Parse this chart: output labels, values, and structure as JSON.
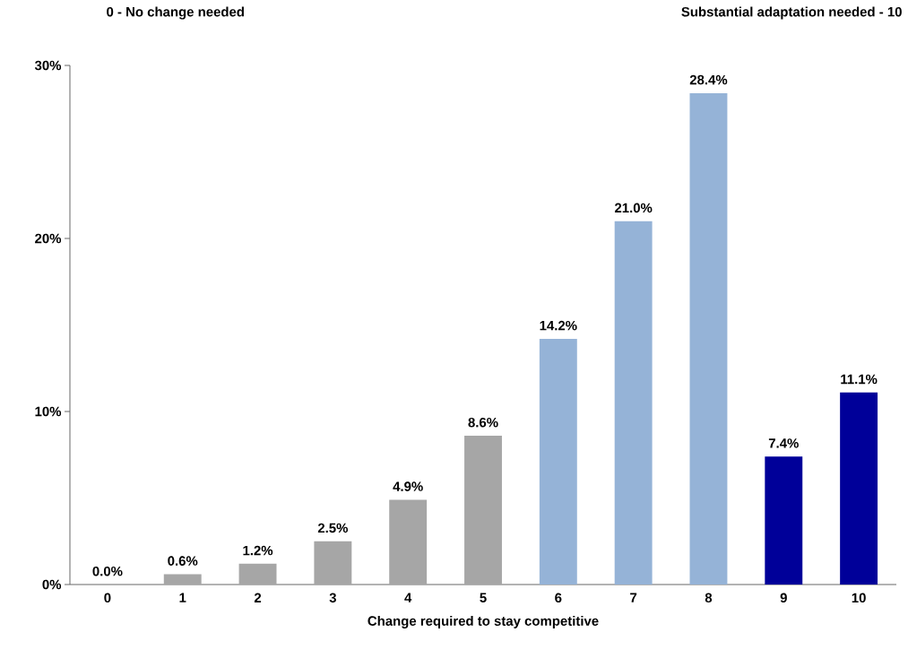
{
  "chart_data": {
    "type": "bar",
    "xlabel": "Change required to stay competitive",
    "annotations": [
      "0 - No change needed",
      "Substantial adaptation needed - 10"
    ],
    "categories": [
      "0",
      "1",
      "2",
      "3",
      "4",
      "5",
      "6",
      "7",
      "8",
      "9",
      "10"
    ],
    "values": [
      0.0,
      0.6,
      1.2,
      2.5,
      4.9,
      8.6,
      14.2,
      21.0,
      28.4,
      7.4,
      11.1
    ],
    "value_labels": [
      "0.0%",
      "0.6%",
      "1.2%",
      "2.5%",
      "4.9%",
      "8.6%",
      "14.2%",
      "21.0%",
      "28.4%",
      "7.4%",
      "11.1%"
    ],
    "colors": [
      "#a6a6a6",
      "#a6a6a6",
      "#a6a6a6",
      "#a6a6a6",
      "#a6a6a6",
      "#a6a6a6",
      "#95b3d7",
      "#95b3d7",
      "#95b3d7",
      "#000099",
      "#000099"
    ],
    "ylim": [
      0,
      30
    ],
    "yticks": [
      {
        "value": 0,
        "label": "0%"
      },
      {
        "value": 10,
        "label": "10%"
      },
      {
        "value": 20,
        "label": "20%"
      },
      {
        "value": 30,
        "label": "30%"
      }
    ]
  }
}
